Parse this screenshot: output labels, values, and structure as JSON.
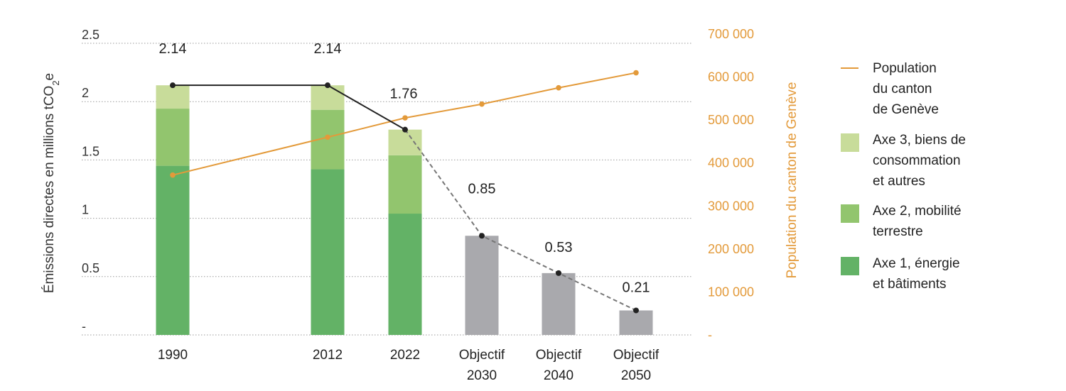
{
  "chart_data": {
    "type": "bar",
    "categories": [
      {
        "line1": "1990",
        "line2": ""
      },
      {
        "line1": "2012",
        "line2": ""
      },
      {
        "line1": "2022",
        "line2": ""
      },
      {
        "line1": "Objectif",
        "line2": "2030"
      },
      {
        "line1": "Objectif",
        "line2": "2040"
      },
      {
        "line1": "Objectif",
        "line2": "2050"
      }
    ],
    "stacked_series": [
      {
        "name": "Axe 1, énergie et bâtiments",
        "color": "#63b266",
        "values": [
          1.45,
          1.42,
          1.04,
          null,
          null,
          null
        ]
      },
      {
        "name": "Axe 2, mobilité terrestre",
        "color": "#92c56e",
        "values": [
          0.49,
          0.51,
          0.5,
          null,
          null,
          null
        ]
      },
      {
        "name": "Axe 3, biens de consommation et autres",
        "color": "#c8dc9a",
        "values": [
          0.2,
          0.21,
          0.22,
          null,
          null,
          null
        ]
      }
    ],
    "objective_bars": {
      "color": "#a9a9ad",
      "values": [
        null,
        null,
        null,
        0.85,
        0.53,
        0.21
      ]
    },
    "totals": [
      2.14,
      2.14,
      1.76,
      0.85,
      0.53,
      0.21
    ],
    "total_labels": [
      "2.14",
      "2.14",
      "1.76",
      "0.85",
      "0.53",
      "0.21"
    ],
    "emissions_line": {
      "color": "#222222",
      "dashed_color": "#777777",
      "values": [
        2.14,
        2.14,
        1.76,
        0.85,
        0.53,
        0.21
      ]
    },
    "population_series": {
      "name": "Population du canton de Genève",
      "color": "#e39a3a",
      "values": [
        372000,
        460000,
        505000,
        537000,
        575000,
        610000
      ]
    },
    "yleft": {
      "label": "Émissions directes en millions tCO",
      "label_sub": "2",
      "label_end": "e",
      "ticks": [
        "-",
        "0.5",
        "1",
        "1.5",
        "2",
        "2.5"
      ],
      "min": 0,
      "max": 2.5
    },
    "yright": {
      "label": "Population du canton de Genève",
      "ticks": [
        "-",
        "100 000",
        "200 000",
        "300 000",
        "400 000",
        "500 000",
        "600 000",
        "700 000"
      ],
      "min": 0,
      "max": 700000
    },
    "legend": [
      {
        "type": "line",
        "color": "#e39a3a",
        "lines": [
          "Population",
          "du canton",
          "de Genève"
        ]
      },
      {
        "type": "box",
        "color": "#c8dc9a",
        "lines": [
          "Axe 3, biens de",
          "consommation",
          "et autres"
        ]
      },
      {
        "type": "box",
        "color": "#92c56e",
        "lines": [
          "Axe 2, mobilité",
          "terrestre"
        ]
      },
      {
        "type": "box",
        "color": "#63b266",
        "lines": [
          "Axe 1, énergie",
          "et bâtiments"
        ]
      }
    ],
    "grid": true,
    "legend_position": "right"
  }
}
